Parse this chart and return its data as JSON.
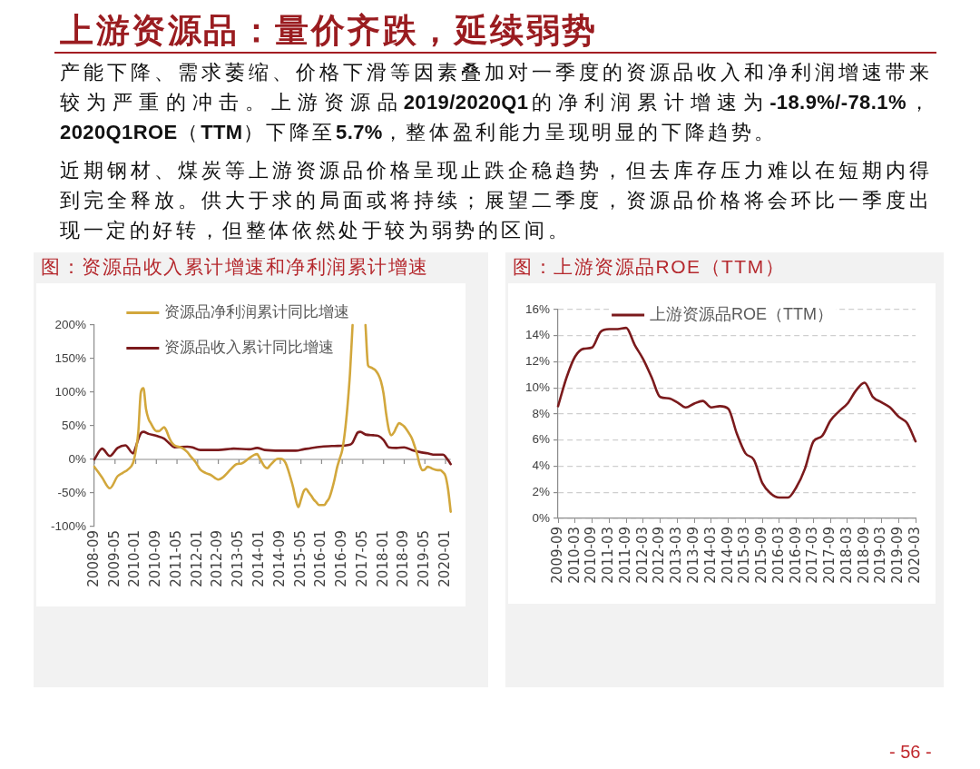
{
  "chart_data": [
    {
      "type": "other",
      "title": "上游资源品：量价齐跌，延续弱势",
      "annotations": [
        "产能下降、需求萎缩、价格下滑等因素叠加对一季度的资源品收入和净利润增速带来较为严重的冲击。上游资源品2019/2020Q1的净利润累计增速为-18.9%/-78.1%，2020Q1ROE（TTM）下降至5.7%，整体盈利能力呈现明显的下降趋势。",
        "近期钢材、煤炭等上游资源品价格呈现止跌企稳趋势，但去库存压力难以在短期内得到完全释放。供大于求的局面或将持续；展望二季度，资源品价格将会环比一季度出现一定的好转，但整体依然处于较为弱势的区间。",
        "- 56 -"
      ]
    },
    {
      "type": "line",
      "title": "图：资源品收入累计增速和净利润累计增速",
      "xlim": [
        "2008-09",
        "2020-03"
      ],
      "xticks": [
        "2008-09",
        "2009-05",
        "2010-01",
        "2010-09",
        "2011-05",
        "2012-01",
        "2012-09",
        "2013-05",
        "2014-01",
        "2014-09",
        "2015-05",
        "2016-01",
        "2016-09",
        "2017-05",
        "2018-01",
        "2018-09",
        "2019-05",
        "2020-01"
      ],
      "ylim": [
        -100,
        200
      ],
      "yticks": [
        {
          "value": -100,
          "label": "-100%"
        },
        {
          "value": -50,
          "label": "-50%"
        },
        {
          "value": 0,
          "label": "0%"
        },
        {
          "value": 50,
          "label": "50%"
        },
        {
          "value": 100,
          "label": "100%"
        },
        {
          "value": 150,
          "label": "150%"
        },
        {
          "value": 200,
          "label": "200%"
        }
      ],
      "legend": "top",
      "series": [
        {
          "name": "资源品净利润累计同比增速",
          "color": "#d2a73c",
          "x": [
            "2008-09",
            "2008-12",
            "2009-03",
            "2009-06",
            "2009-08",
            "2009-10",
            "2009-12",
            "2010-01",
            "2010-02",
            "2010-03",
            "2010-04",
            "2010-05",
            "2010-06",
            "2010-07",
            "2010-08",
            "2010-09",
            "2010-10",
            "2010-11",
            "2010-12",
            "2011-01",
            "2011-02",
            "2011-03",
            "2011-04",
            "2011-07",
            "2011-09",
            "2011-10",
            "2011-12",
            "2012-01",
            "2012-02",
            "2012-04",
            "2012-06",
            "2012-09",
            "2012-11",
            "2012-12",
            "2013-02",
            "2013-04",
            "2013-06",
            "2013-07",
            "2013-09",
            "2013-11",
            "2013-12",
            "2014-01",
            "2014-02",
            "2014-03",
            "2014-04",
            "2014-05",
            "2014-06",
            "2014-07",
            "2014-08",
            "2014-09",
            "2014-10",
            "2014-11",
            "2014-12",
            "2015-01",
            "2015-02",
            "2015-03",
            "2015-04",
            "2015-05",
            "2015-06",
            "2015-07",
            "2015-08",
            "2015-09",
            "2015-10",
            "2015-11",
            "2015-12",
            "2016-02",
            "2016-03",
            "2016-04",
            "2016-05",
            "2016-06",
            "2016-07",
            "2016-08",
            "2016-09",
            "2016-10",
            "2016-11",
            "2016-12",
            "2017-01",
            "2017-03",
            "2017-06",
            "2017-07",
            "2017-08",
            "2017-09",
            "2017-10",
            "2017-11",
            "2017-12",
            "2018-01",
            "2018-02",
            "2018-03",
            "2018-04",
            "2018-05",
            "2018-06",
            "2018-07",
            "2018-08",
            "2018-09",
            "2018-10",
            "2018-11",
            "2018-12",
            "2019-01",
            "2019-02",
            "2019-03",
            "2019-04",
            "2019-05",
            "2019-06",
            "2019-07",
            "2019-08",
            "2019-10",
            "2019-11",
            "2019-12",
            "2020-01",
            "2020-02",
            "2020-03"
          ],
          "values": [
            -11,
            -27,
            -43,
            -25,
            -20,
            -15,
            -5,
            12,
            40,
            100,
            106,
            75,
            60,
            53,
            46,
            42,
            42,
            45,
            48,
            42,
            32,
            25,
            21,
            17,
            11,
            6,
            -3,
            -9,
            -15,
            -20,
            -23,
            -30,
            -26,
            -22,
            -14,
            -7,
            -6,
            -4,
            2,
            7,
            8,
            2,
            -5,
            -11,
            -13,
            -9,
            -5,
            -1,
            1,
            1,
            0,
            -5,
            -15,
            -28,
            -42,
            -60,
            -71,
            -60,
            -48,
            -44,
            -49,
            -54,
            -60,
            -64,
            -68,
            -68,
            -63,
            -57,
            -45,
            -30,
            -12,
            1,
            14,
            40,
            78,
            128,
            200,
            null,
            200,
            140,
            137,
            135,
            132,
            126,
            116,
            98,
            68,
            45,
            36,
            40,
            48,
            54,
            52,
            49,
            44,
            38,
            31,
            20,
            8,
            -8,
            -16,
            -15,
            -11,
            -12,
            -14,
            -16,
            -16,
            -19,
            -25,
            -45,
            -78
          ]
        },
        {
          "name": "资源品收入累计同比增速",
          "color": "#7b1a1c",
          "x": [
            "2008-09",
            "2008-12",
            "2009-03",
            "2009-06",
            "2009-09",
            "2009-12",
            "2010-01",
            "2010-02",
            "2010-03",
            "2010-04",
            "2010-06",
            "2010-09",
            "2010-12",
            "2011-02",
            "2011-04",
            "2011-09",
            "2011-11",
            "2012-02",
            "2012-09",
            "2013-03",
            "2013-09",
            "2013-12",
            "2014-03",
            "2014-09",
            "2015-03",
            "2015-06",
            "2015-09",
            "2016-01",
            "2016-06",
            "2016-12",
            "2017-01",
            "2017-02",
            "2017-03",
            "2017-04",
            "2017-06",
            "2017-09",
            "2017-11",
            "2018-01",
            "2018-03",
            "2018-06",
            "2018-09",
            "2018-12",
            "2019-03",
            "2019-06",
            "2019-09",
            "2019-12",
            "2020-01",
            "2020-03"
          ],
          "values": [
            0,
            16,
            5,
            17,
            21,
            9,
            18,
            30,
            39,
            41,
            38,
            35,
            31,
            24,
            18,
            19,
            18,
            14,
            14,
            16,
            15,
            17,
            14,
            13,
            13,
            15,
            17,
            19,
            20,
            22,
            25,
            33,
            40,
            41,
            37,
            36,
            35,
            29,
            18,
            17,
            18,
            14,
            11,
            9,
            7,
            7,
            4,
            -7
          ]
        }
      ]
    },
    {
      "type": "line",
      "title": "图：上游资源品ROE（TTM）",
      "x": [
        "2009-09",
        "2009-12",
        "2010-03",
        "2010-06",
        "2010-09",
        "2010-12",
        "2011-03",
        "2011-06",
        "2011-09",
        "2011-12",
        "2012-03",
        "2012-06",
        "2012-09",
        "2012-12",
        "2013-03",
        "2013-06",
        "2013-09",
        "2013-12",
        "2014-03",
        "2014-06",
        "2014-09",
        "2014-12",
        "2015-03",
        "2015-06",
        "2015-09",
        "2015-12",
        "2016-03",
        "2016-06",
        "2016-09",
        "2016-12",
        "2017-03",
        "2017-06",
        "2017-09",
        "2017-12",
        "2018-03",
        "2018-06",
        "2018-09",
        "2018-12",
        "2019-03",
        "2019-06",
        "2019-09",
        "2019-12",
        "2020-03"
      ],
      "xlim": [
        "2009-09",
        "2020-03"
      ],
      "xticks": [
        "2009-09",
        "2010-03",
        "2010-09",
        "2011-03",
        "2011-09",
        "2012-03",
        "2012-09",
        "2013-03",
        "2013-09",
        "2014-03",
        "2014-09",
        "2015-03",
        "2015-09",
        "2016-03",
        "2016-09",
        "2017-03",
        "2017-09",
        "2018-03",
        "2018-09",
        "2019-03",
        "2019-09",
        "2020-03"
      ],
      "ylim": [
        0,
        16
      ],
      "yticks": [
        {
          "value": 0,
          "label": "0%"
        },
        {
          "value": 2,
          "label": "2%"
        },
        {
          "value": 4,
          "label": "4%"
        },
        {
          "value": 6,
          "label": "6%"
        },
        {
          "value": 8,
          "label": "8%"
        },
        {
          "value": 10,
          "label": "10%"
        },
        {
          "value": 12,
          "label": "12%"
        },
        {
          "value": 14,
          "label": "14%"
        },
        {
          "value": 16,
          "label": "16%"
        }
      ],
      "grid": "y",
      "legend": "top",
      "series": [
        {
          "name": "上游资源品ROE（TTM）",
          "color": "#7b1a1c",
          "values": [
            8.6,
            10.8,
            12.4,
            13.0,
            13.1,
            14.3,
            14.5,
            14.5,
            14.6,
            13.3,
            12.2,
            10.8,
            9.3,
            9.2,
            8.9,
            8.5,
            8.8,
            9.0,
            8.5,
            8.6,
            8.4,
            6.5,
            5.0,
            4.5,
            2.7,
            1.9,
            1.6,
            1.6,
            2.4,
            3.8,
            5.9,
            6.3,
            7.5,
            8.2,
            8.8,
            9.8,
            10.4,
            9.3,
            8.9,
            8.5,
            7.8,
            7.3,
            5.9
          ]
        }
      ]
    }
  ]
}
